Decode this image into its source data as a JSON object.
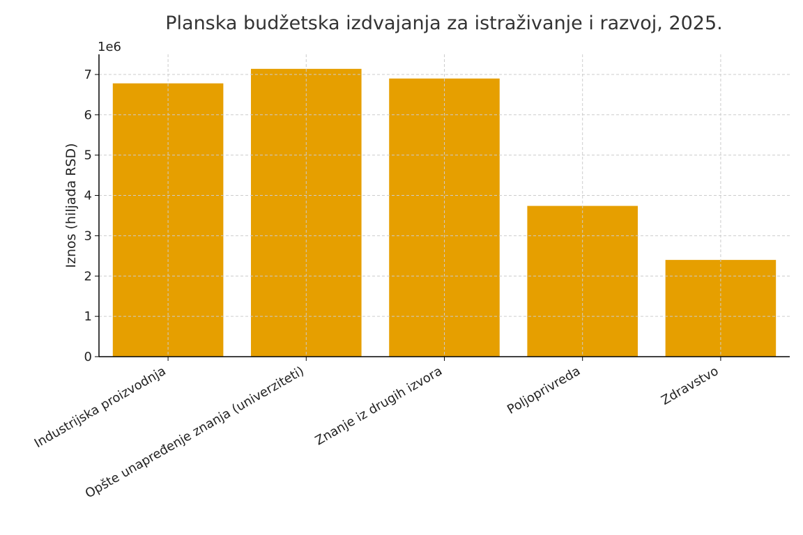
{
  "chart_data": {
    "type": "bar",
    "title": "Planska budžetska izdvajanja za istraživanje i razvoj, 2025.",
    "xlabel": "",
    "ylabel": "Iznos (hiljada RSD)",
    "scale_label": "1e6",
    "categories": [
      "Industrijska proizvodnja",
      "Opšte unapređenje znanja (univerziteti)",
      "Znanje iz drugih izvora",
      "Poljoprivreda",
      "Zdravstvo"
    ],
    "values": [
      6780000,
      7140000,
      6900000,
      3740000,
      2400000
    ],
    "ylim": [
      0,
      7500000
    ],
    "yticks": [
      0,
      1000000,
      2000000,
      3000000,
      4000000,
      5000000,
      6000000,
      7000000
    ],
    "ytick_labels": [
      "0",
      "1",
      "2",
      "3",
      "4",
      "5",
      "6",
      "7"
    ],
    "grid": true,
    "colors": {
      "bar": "#E69F00"
    }
  }
}
